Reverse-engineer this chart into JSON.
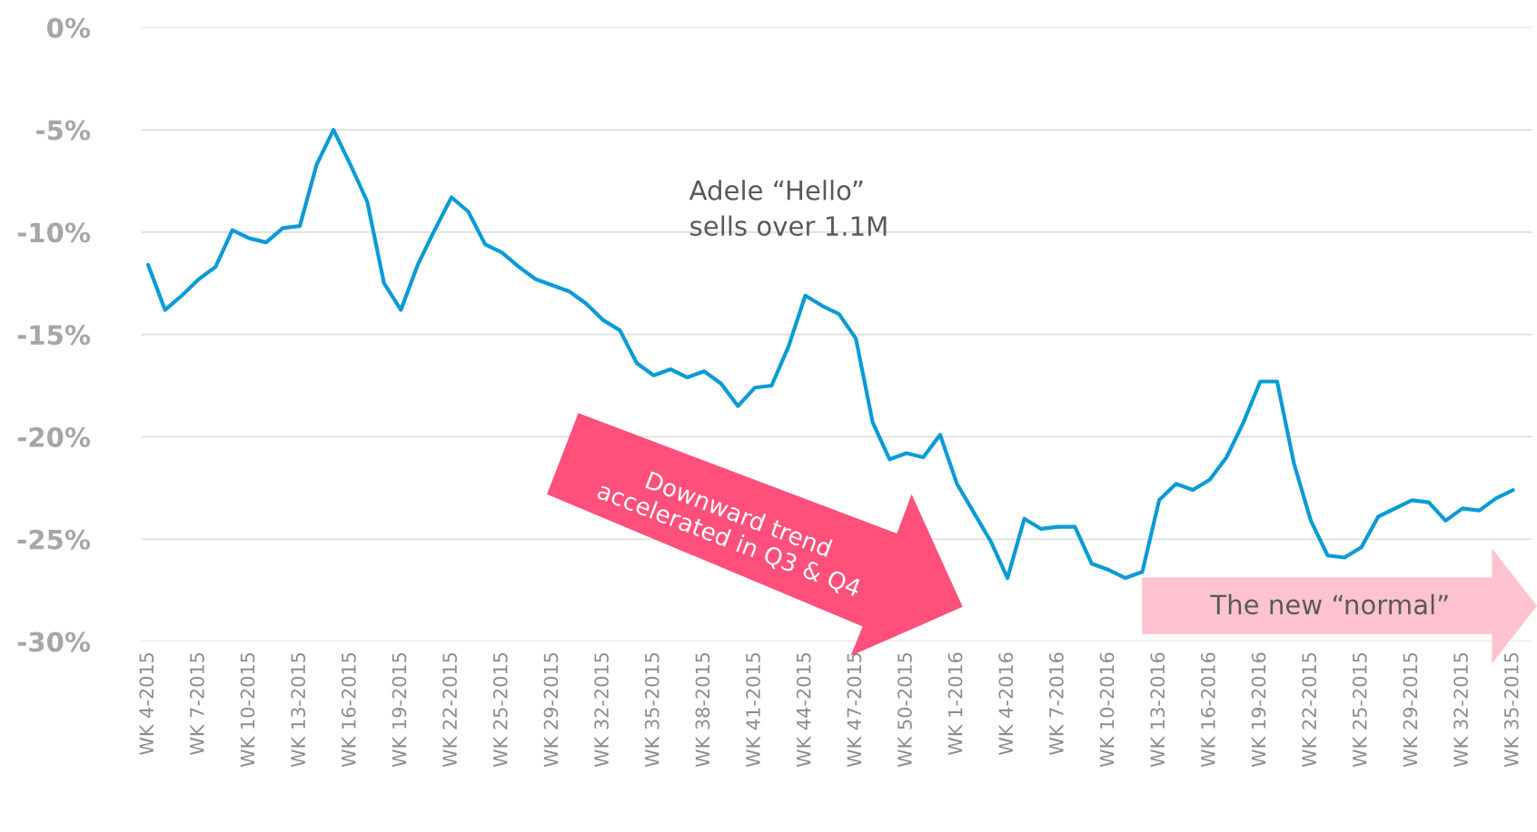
{
  "chart_data": {
    "type": "line",
    "categories": [
      "WK 4-2015",
      null,
      null,
      "WK 7-2015",
      null,
      null,
      "WK 10-2015",
      null,
      null,
      "WK 13-2015",
      null,
      null,
      "WK 16-2015",
      null,
      null,
      "WK 19-2015",
      null,
      null,
      "WK 22-2015",
      null,
      null,
      "WK 25-2015",
      null,
      null,
      "WK 29-2015",
      null,
      null,
      "WK 32-2015",
      null,
      null,
      "WK 35-2015",
      null,
      null,
      "WK 38-2015",
      null,
      null,
      "WK 41-2015",
      null,
      null,
      "WK 44-2015",
      null,
      null,
      "WK 47-2015",
      null,
      null,
      "WK 50-2015",
      null,
      null,
      "WK 1-2016",
      null,
      null,
      "WK 4-2016",
      null,
      null,
      "WK 7-2016",
      null,
      null,
      "WK 10-2016",
      null,
      null,
      "WK 13-2016",
      null,
      null,
      "WK 16-2016",
      null,
      null,
      "WK 19-2016",
      null,
      null,
      "WK 22-2015",
      null,
      null,
      "WK 25-2015",
      null,
      null,
      "WK 29-2015",
      null,
      null,
      "WK 32-2015",
      null,
      null,
      "WK 35-2015"
    ],
    "series": [
      {
        "color": "#0a9bd6",
        "values": [
          -11.6,
          -13.8,
          -13.1,
          -12.3,
          -11.7,
          -9.9,
          -10.3,
          -10.5,
          -9.8,
          -9.7,
          -6.7,
          -5.0,
          -6.7,
          -8.5,
          -12.5,
          -13.8,
          -11.6,
          -9.9,
          -8.3,
          -9.0,
          -10.6,
          -11.0,
          -11.7,
          -12.3,
          -12.6,
          -12.9,
          -13.5,
          -14.3,
          -14.8,
          -16.4,
          -17.0,
          -16.7,
          -17.1,
          -16.8,
          -17.4,
          -18.5,
          -17.6,
          -17.5,
          -15.6,
          -13.1,
          -13.6,
          -14.0,
          -15.2,
          -19.3,
          -21.1,
          -20.8,
          -21.0,
          -19.9,
          -22.3,
          -23.7,
          -25.1,
          -26.9,
          -24.0,
          -24.5,
          -24.4,
          -24.4,
          -26.2,
          -26.5,
          -26.9,
          -26.6,
          -23.1,
          -22.3,
          -22.6,
          -22.1,
          -21.0,
          -19.3,
          -17.3,
          -17.3,
          -21.3,
          -24.1,
          -25.8,
          -25.9,
          -25.4,
          -23.9,
          -23.5,
          -23.1,
          -23.2,
          -24.1,
          -23.5,
          -23.6,
          -23.0,
          -22.6
        ]
      }
    ],
    "ylim": [
      -30,
      0
    ],
    "yticks": [
      {
        "value": -30,
        "label": "-30%"
      },
      {
        "value": -25,
        "label": "-25%"
      },
      {
        "value": -20,
        "label": "-20%"
      },
      {
        "value": -15,
        "label": "-15%"
      },
      {
        "value": -10,
        "label": "-10%"
      },
      {
        "value": -5,
        "label": "-5%"
      },
      {
        "value": 0,
        "label": "0%"
      }
    ],
    "grid": "y",
    "annotations": [
      "Adele “Hello”\nsells over 1.1M",
      "Downward trend\naccelerated in Q3 & Q4",
      "The new “normal”"
    ]
  }
}
